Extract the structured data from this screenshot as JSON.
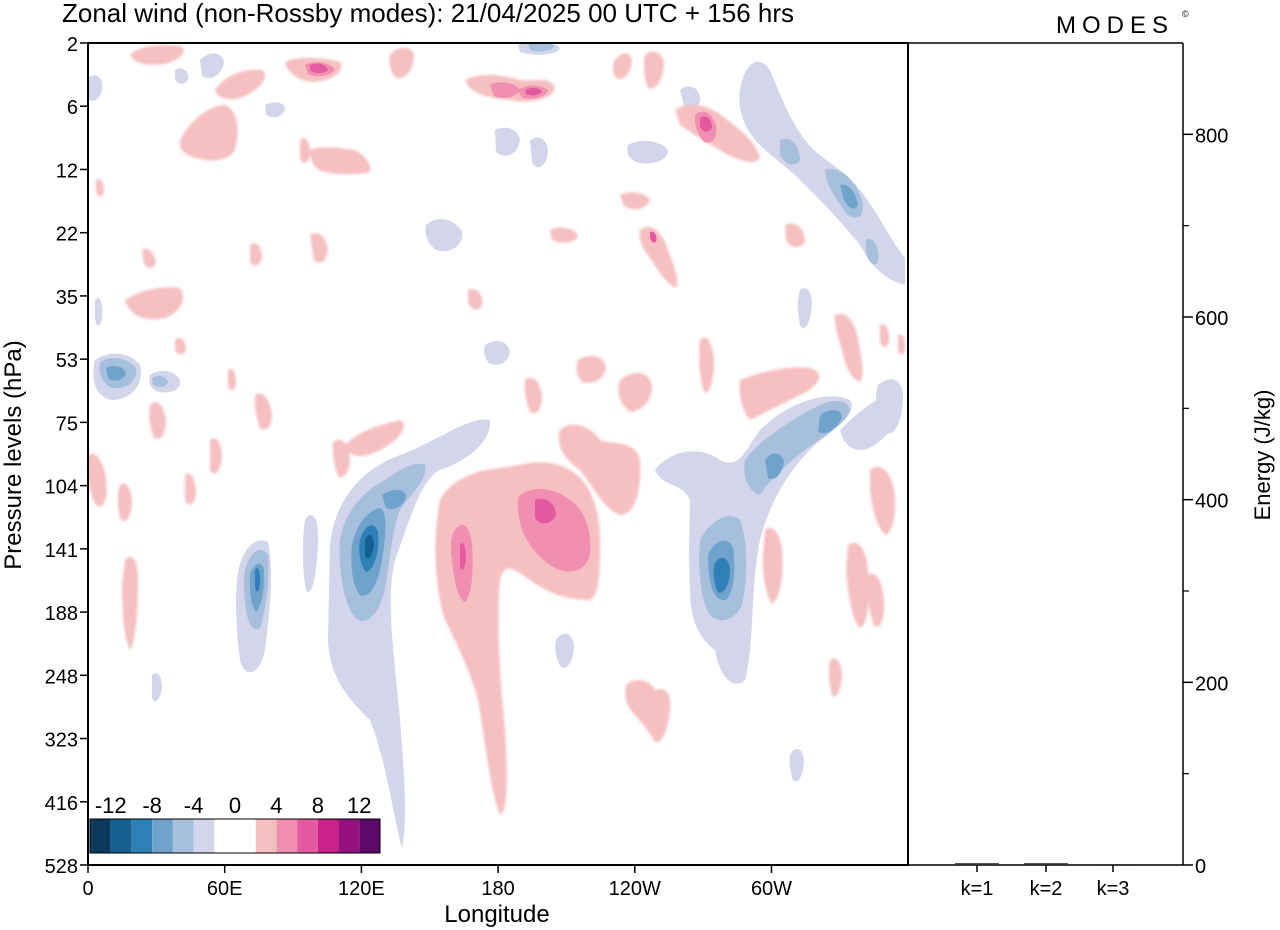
{
  "title": "Zonal wind (non-Rossby modes):  21/04/2025  00 UTC  + 156 hrs",
  "logo": {
    "text": "MODES",
    "mark": "©"
  },
  "chart_data": [
    {
      "type": "heatmap",
      "title": "Zonal wind (non-Rossby modes):  21/04/2025  00 UTC  + 156 hrs",
      "xlabel": "Longitude",
      "ylabel": "Pressure levels (hPa)",
      "x_ticks": [
        "0",
        "60E",
        "120E",
        "180",
        "120W",
        "60W"
      ],
      "y_ticks": [
        "2",
        "6",
        "12",
        "22",
        "35",
        "53",
        "75",
        "104",
        "141",
        "188",
        "248",
        "323",
        "416",
        "528"
      ],
      "colorbar": {
        "labels": [
          "-12",
          "-8",
          "-4",
          "0",
          "4",
          "8",
          "12"
        ],
        "colors": [
          "#0b3a5c",
          "#155f91",
          "#2f80b8",
          "#6fa3cc",
          "#a6bfdd",
          "#d3d6ea",
          "#ffffff",
          "#ffffff",
          "#f6c0c1",
          "#f08fb1",
          "#e45aa0",
          "#c9208a",
          "#95127c",
          "#5c0a6a"
        ]
      },
      "features": [
        {
          "level_hPa": 141,
          "lon": 122,
          "value": -12
        },
        {
          "level_hPa": 141,
          "lon": 207,
          "value": 8
        },
        {
          "level_hPa": 155,
          "lon": 165,
          "value": 8
        },
        {
          "level_hPa": 155,
          "lon": 280,
          "value": -10
        },
        {
          "level_hPa": 155,
          "lon": 74,
          "value": -6
        },
        {
          "level_hPa": 53,
          "lon": 13,
          "value": -6
        },
        {
          "level_hPa": 8,
          "lon": 272,
          "value": 8
        },
        {
          "level_hPa": 14,
          "lon": 333,
          "value": -6
        }
      ]
    },
    {
      "type": "bar",
      "categories": [
        "k=1",
        "k=2",
        "k=3"
      ],
      "values": [
        2,
        2,
        1
      ],
      "ylabel": "Energy (J/kg)",
      "ylim": [
        0,
        900
      ],
      "y_ticks": [
        0,
        200,
        400,
        600,
        800
      ]
    }
  ]
}
